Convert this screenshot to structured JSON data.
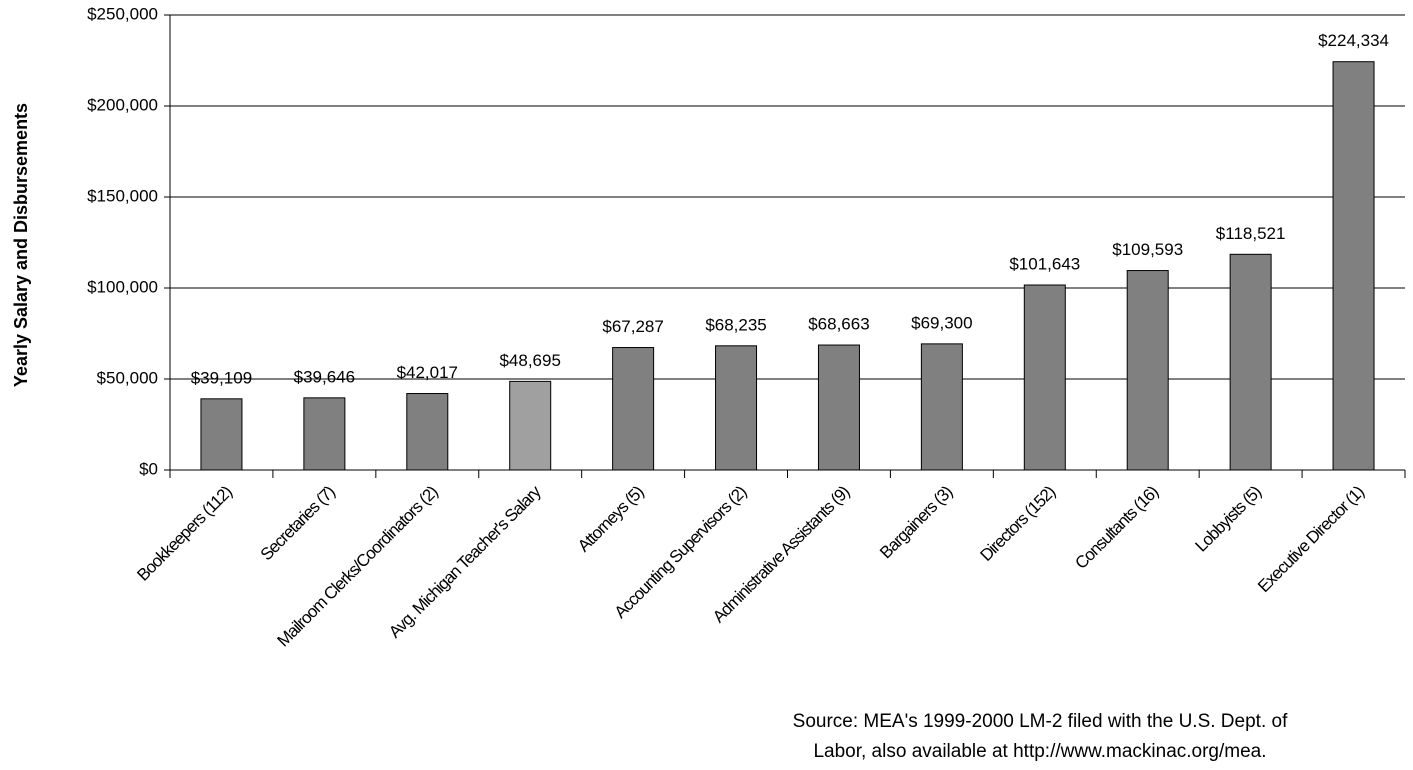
{
  "chart_data": {
    "type": "bar",
    "y_label": "Yearly Salary and Disbursements",
    "categories": [
      "Bookkeepers (112)",
      "Secretaries (7)",
      "Mailroom Clerks/Coordinators (2)",
      "Avg. Michigan Teacher's Salary",
      "Attorneys (5)",
      "Accounting Supervisors (2)",
      "Administrative Assistants (9)",
      "Bargainers (3)",
      "Directors (152)",
      "Consultants (16)",
      "Lobbyists (5)",
      "Executive Director (1)"
    ],
    "values": [
      39109,
      39646,
      42017,
      48695,
      67287,
      68235,
      68663,
      69300,
      101643,
      109593,
      118521,
      224334
    ],
    "value_labels": [
      "$39,109",
      "$39,646",
      "$42,017",
      "$48,695",
      "$67,287",
      "$68,235",
      "$68,663",
      "$69,300",
      "$101,643",
      "$109,593",
      "$118,521",
      "$224,334"
    ],
    "colors": [
      "#808080",
      "#808080",
      "#808080",
      "#a0a0a0",
      "#808080",
      "#808080",
      "#808080",
      "#808080",
      "#808080",
      "#808080",
      "#808080",
      "#808080"
    ],
    "ylim": [
      0,
      250000
    ],
    "yticks": [
      {
        "value": 0,
        "label": "$0"
      },
      {
        "value": 50000,
        "label": "$50,000"
      },
      {
        "value": 100000,
        "label": "$100,000"
      },
      {
        "value": 150000,
        "label": "$150,000"
      },
      {
        "value": 200000,
        "label": "$200,000"
      },
      {
        "value": 250000,
        "label": "$250,000"
      }
    ],
    "grid": true,
    "source": [
      "Source: MEA's 1999-2000 LM-2 filed with the U.S. Dept. of",
      "Labor, also available at http://www.mackinac.org/mea."
    ]
  }
}
